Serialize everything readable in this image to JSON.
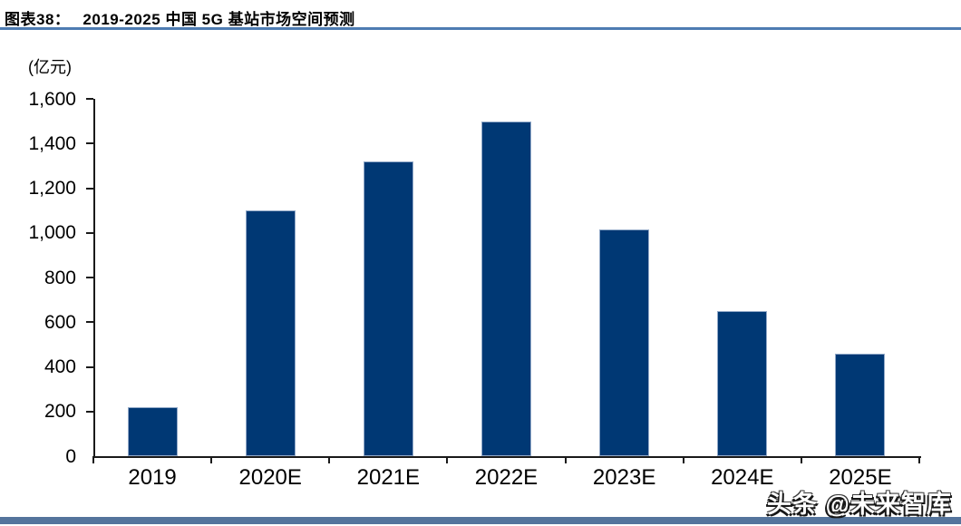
{
  "header": {
    "figure_label": "图表38：",
    "title": "2019-2025 中国 5G 基站市场空间预测"
  },
  "watermark": {
    "text": "头条 @未来智库"
  },
  "colors": {
    "bar_fill": "#003874",
    "bar_border": "#92a9c8",
    "title_rule": "#4e7cb2",
    "bottom_bar": "#54749c",
    "axis": "#1a1a1a",
    "text": "#000000"
  },
  "chart_data": {
    "type": "bar",
    "title": "2019-2025 中国 5G 基站市场空间预测",
    "categories": [
      "2019",
      "2020E",
      "2021E",
      "2022E",
      "2023E",
      "2024E",
      "2025E"
    ],
    "values": [
      220,
      1100,
      1320,
      1500,
      1015,
      650,
      460
    ],
    "xlabel": "",
    "ylabel": "(亿元)",
    "ylim": [
      0,
      1600
    ],
    "ytick_step": 200,
    "ytick_labels": [
      "0",
      "200",
      "400",
      "600",
      "800",
      "1,000",
      "1,200",
      "1,400",
      "1,600"
    ],
    "grid": false,
    "legend": null
  }
}
